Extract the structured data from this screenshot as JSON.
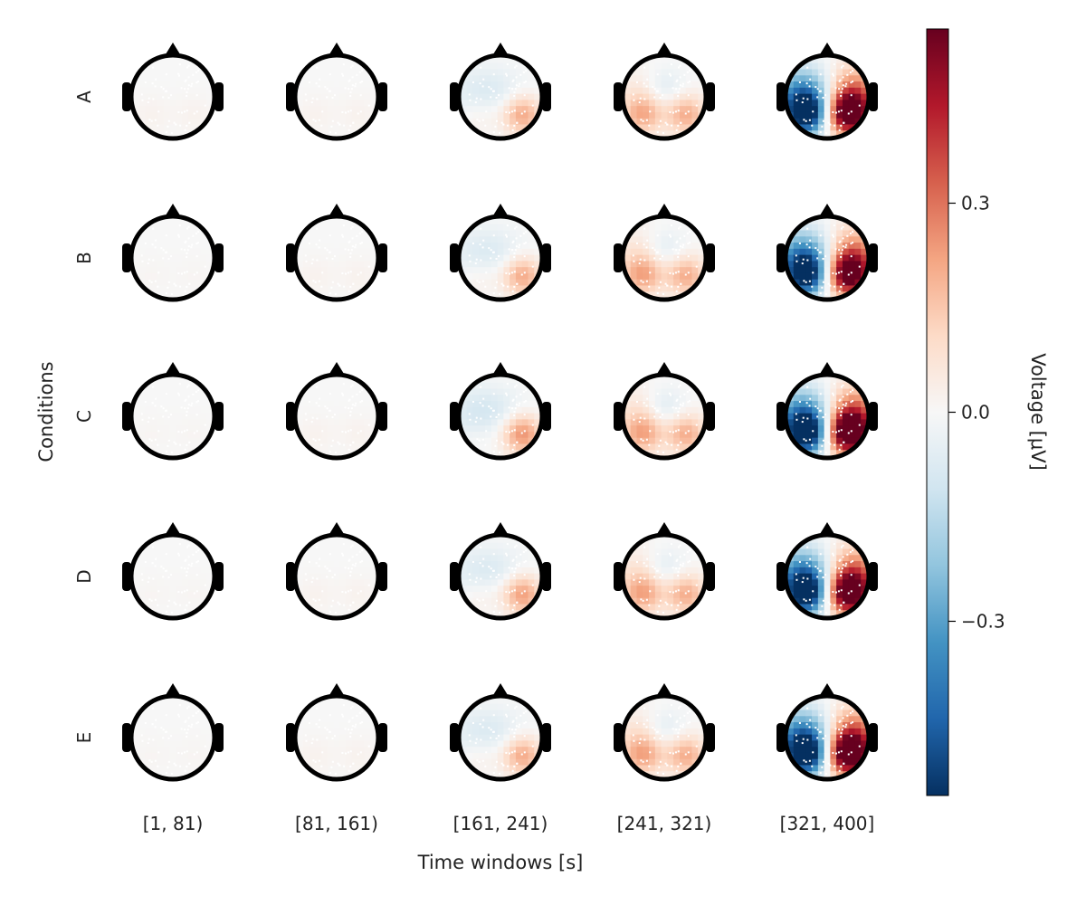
{
  "chart_data": {
    "type": "heatmap",
    "subtype": "topoplot-grid",
    "xlabel": "Time windows [s]",
    "ylabel": "Conditions",
    "rows": [
      "A",
      "B",
      "C",
      "D",
      "E"
    ],
    "columns": [
      "[1, 81)",
      "[81, 161)",
      "[161, 241)",
      "[241, 321)",
      "[321, 400]"
    ],
    "colorbar": {
      "label": "Voltage [μV]",
      "range": [
        -0.55,
        0.55
      ],
      "ticks": [
        0.3,
        0.0,
        -0.3
      ],
      "tick_labels": [
        "0.3",
        "0.0",
        "−0.3"
      ],
      "colormap": "RdBu_r"
    },
    "values": [
      [
        {
          "left_occ": 0.02,
          "right_occ": 0.02,
          "left": 0.0,
          "right": 0.0,
          "center": 0.0
        },
        {
          "left_occ": 0.02,
          "right_occ": 0.02,
          "left": 0.0,
          "right": 0.0,
          "center": 0.0
        },
        {
          "left_occ": 0.06,
          "right_occ": 0.22,
          "left": -0.08,
          "right": -0.02,
          "center": -0.03
        },
        {
          "left_occ": 0.18,
          "right_occ": 0.2,
          "left": 0.06,
          "right": 0.0,
          "center": -0.08
        },
        {
          "left_occ": -0.5,
          "right_occ": 0.52,
          "left": -0.38,
          "right": 0.36,
          "center": -0.05
        }
      ],
      [
        {
          "left_occ": 0.01,
          "right_occ": 0.01,
          "left": 0.0,
          "right": 0.0,
          "center": 0.0
        },
        {
          "left_occ": 0.02,
          "right_occ": 0.02,
          "left": 0.0,
          "right": 0.0,
          "center": 0.0
        },
        {
          "left_occ": 0.06,
          "right_occ": 0.22,
          "left": -0.08,
          "right": -0.02,
          "center": -0.03
        },
        {
          "left_occ": 0.18,
          "right_occ": 0.2,
          "left": 0.08,
          "right": 0.0,
          "center": -0.08
        },
        {
          "left_occ": -0.48,
          "right_occ": 0.48,
          "left": -0.36,
          "right": 0.34,
          "center": -0.05
        }
      ],
      [
        {
          "left_occ": 0.01,
          "right_occ": 0.01,
          "left": 0.0,
          "right": 0.0,
          "center": 0.0
        },
        {
          "left_occ": 0.02,
          "right_occ": 0.02,
          "left": 0.0,
          "right": 0.0,
          "center": 0.0
        },
        {
          "left_occ": 0.04,
          "right_occ": 0.26,
          "left": -0.1,
          "right": -0.02,
          "center": -0.03
        },
        {
          "left_occ": 0.18,
          "right_occ": 0.2,
          "left": 0.08,
          "right": 0.0,
          "center": -0.09
        },
        {
          "left_occ": -0.55,
          "right_occ": 0.56,
          "left": -0.36,
          "right": 0.38,
          "center": -0.05
        }
      ],
      [
        {
          "left_occ": 0.01,
          "right_occ": 0.01,
          "left": 0.0,
          "right": 0.0,
          "center": 0.0
        },
        {
          "left_occ": 0.02,
          "right_occ": 0.02,
          "left": 0.0,
          "right": 0.0,
          "center": 0.0
        },
        {
          "left_occ": 0.06,
          "right_occ": 0.24,
          "left": -0.08,
          "right": -0.02,
          "center": -0.03
        },
        {
          "left_occ": 0.18,
          "right_occ": 0.2,
          "left": 0.08,
          "right": 0.0,
          "center": -0.08
        },
        {
          "left_occ": -0.5,
          "right_occ": 0.52,
          "left": -0.38,
          "right": 0.36,
          "center": -0.05
        }
      ],
      [
        {
          "left_occ": 0.01,
          "right_occ": 0.01,
          "left": 0.0,
          "right": 0.0,
          "center": 0.0
        },
        {
          "left_occ": 0.02,
          "right_occ": 0.02,
          "left": 0.0,
          "right": 0.0,
          "center": 0.0
        },
        {
          "left_occ": 0.06,
          "right_occ": 0.22,
          "left": -0.08,
          "right": -0.02,
          "center": -0.03
        },
        {
          "left_occ": 0.18,
          "right_occ": 0.2,
          "left": 0.08,
          "right": 0.0,
          "center": -0.08
        },
        {
          "left_occ": -0.52,
          "right_occ": 0.54,
          "left": -0.38,
          "right": 0.38,
          "center": -0.05
        }
      ]
    ]
  }
}
